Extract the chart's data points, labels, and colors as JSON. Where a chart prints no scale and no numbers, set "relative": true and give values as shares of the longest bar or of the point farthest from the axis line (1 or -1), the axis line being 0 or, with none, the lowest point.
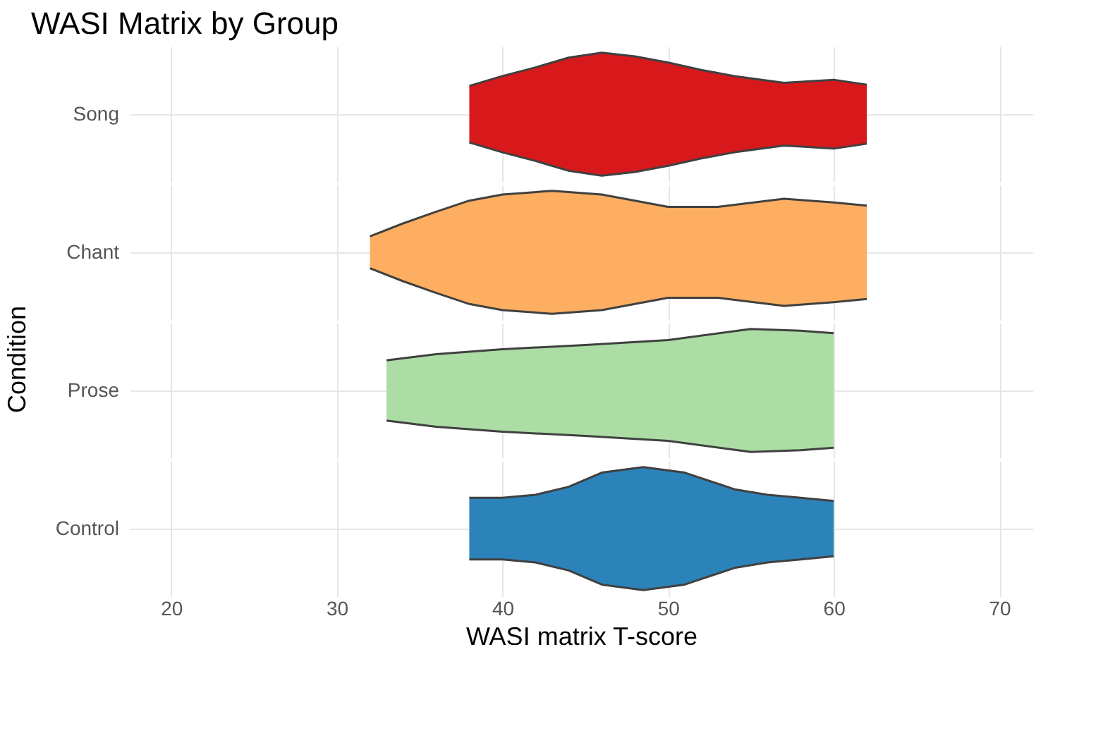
{
  "chart_data": [
    {
      "type": "area",
      "title": "WASI Matrix by Group",
      "ylabel": "Condition",
      "relative": true,
      "xlim": [
        17.5,
        72
      ],
      "xticks": [
        20,
        30,
        40,
        50,
        60,
        70
      ],
      "grid": true,
      "tick_labels": false,
      "series": [
        {
          "name": "Song",
          "color": "#d7191c",
          "x": [
            38,
            40,
            42,
            44,
            46,
            48,
            50,
            52,
            54,
            57,
            60,
            62
          ],
          "values": [
            0.46,
            0.62,
            0.76,
            0.92,
            1,
            0.94,
            0.84,
            0.72,
            0.62,
            0.51,
            0.56,
            0.48
          ]
        },
        {
          "color": "#d7191c",
          "x": [
            38,
            40,
            42,
            44,
            46,
            48,
            50,
            52,
            54,
            57,
            60,
            62
          ],
          "values": [
            -0.46,
            -0.62,
            -0.76,
            -0.92,
            -1,
            -0.94,
            -0.84,
            -0.72,
            -0.62,
            -0.51,
            -0.56,
            -0.48
          ]
        }
      ]
    },
    {
      "type": "area",
      "relative": true,
      "xlim": [
        17.5,
        72
      ],
      "xticks": [
        20,
        30,
        40,
        50,
        60,
        70
      ],
      "grid": true,
      "tick_labels": false,
      "series": [
        {
          "name": "Chant",
          "color": "#fdae61",
          "x": [
            32,
            34,
            36,
            38,
            40,
            43,
            46,
            50,
            53,
            57,
            60,
            62
          ],
          "values": [
            0.26,
            0.47,
            0.66,
            0.84,
            0.94,
            1,
            0.94,
            0.74,
            0.74,
            0.87,
            0.81,
            0.76
          ]
        },
        {
          "color": "#fdae61",
          "x": [
            32,
            34,
            36,
            38,
            40,
            43,
            46,
            50,
            53,
            57,
            60,
            62
          ],
          "values": [
            -0.26,
            -0.47,
            -0.66,
            -0.84,
            -0.94,
            -1,
            -0.94,
            -0.74,
            -0.74,
            -0.87,
            -0.81,
            -0.76
          ]
        }
      ]
    },
    {
      "type": "area",
      "relative": true,
      "xlim": [
        17.5,
        72
      ],
      "xticks": [
        20,
        30,
        40,
        50,
        60,
        70
      ],
      "grid": true,
      "tick_labels": false,
      "series": [
        {
          "name": "Prose",
          "color": "#abdda4",
          "x": [
            33,
            36,
            40,
            45,
            50,
            55,
            58,
            60
          ],
          "values": [
            0.49,
            0.59,
            0.67,
            0.74,
            0.82,
            1,
            0.97,
            0.93
          ]
        },
        {
          "color": "#abdda4",
          "x": [
            33,
            36,
            40,
            45,
            50,
            55,
            58,
            60
          ],
          "values": [
            -0.49,
            -0.59,
            -0.67,
            -0.74,
            -0.82,
            -1,
            -0.97,
            -0.93
          ]
        }
      ]
    },
    {
      "type": "area",
      "xlabel": "WASI matrix T-score",
      "relative": true,
      "xlim": [
        17.5,
        72
      ],
      "xticks": [
        20,
        30,
        40,
        50,
        60,
        70
      ],
      "grid": true,
      "tick_labels": "x",
      "series": [
        {
          "name": "Control",
          "color": "#2b83ba",
          "x": [
            38,
            40,
            42,
            44,
            46,
            48.5,
            51,
            54,
            56,
            58,
            60
          ],
          "values": [
            0.5,
            0.5,
            0.55,
            0.68,
            0.91,
            1,
            0.91,
            0.64,
            0.55,
            0.5,
            0.45
          ]
        },
        {
          "color": "#2b83ba",
          "x": [
            38,
            40,
            42,
            44,
            46,
            48.5,
            51,
            54,
            56,
            58,
            60
          ],
          "values": [
            -0.5,
            -0.5,
            -0.55,
            -0.68,
            -0.91,
            -1,
            -0.91,
            -0.64,
            -0.55,
            -0.5,
            -0.45
          ]
        }
      ]
    }
  ]
}
